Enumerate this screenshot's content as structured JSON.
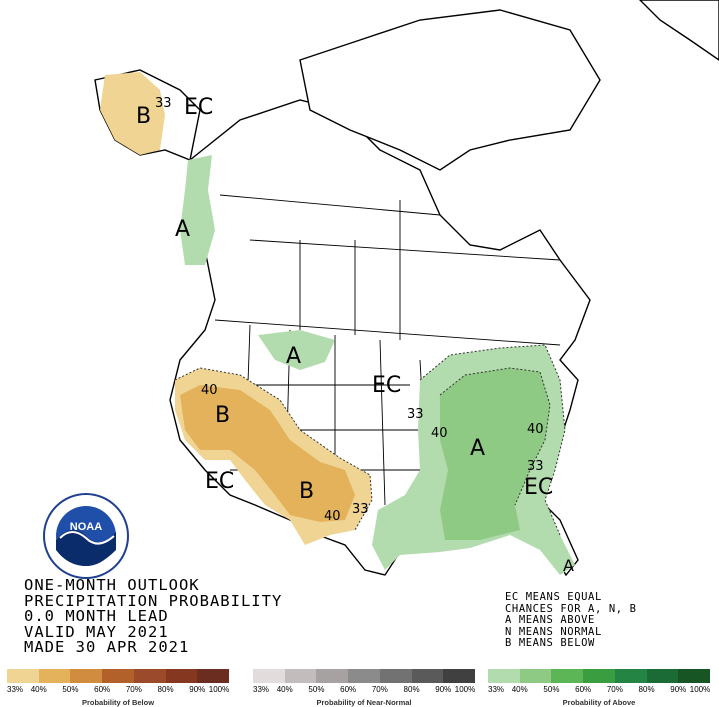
{
  "map": {
    "labels": {
      "alaska_below": "B",
      "alaska_33": "33",
      "alaska_ec": "EC",
      "pacnw_above": "A",
      "north_above": "A",
      "central_ec": "EC",
      "west_40": "40",
      "west_below": "B",
      "sw_ec": "EC",
      "south_below": "B",
      "south_40": "40",
      "south_33": "33",
      "east_33": "33",
      "east_40a": "40",
      "east_above": "A",
      "east_40b": "40",
      "east_33b": "33",
      "se_ec": "EC",
      "florida_above": "A"
    }
  },
  "title": {
    "line1": "ONE-MONTH OUTLOOK",
    "line2": "PRECIPITATION PROBABILITY",
    "line3": "0.0 MONTH LEAD",
    "line4": "VALID MAY 2021",
    "line5": "MADE 30 APR 2021"
  },
  "key": {
    "line1": "EC MEANS EQUAL",
    "line2": "CHANCES FOR A, N, B",
    "line3": "A MEANS ABOVE",
    "line4": "N MEANS NORMAL",
    "line5": "B MEANS BELOW"
  },
  "logo": {
    "text": "NOAA",
    "ring_text": "NATIONAL OCEANIC AND ATMOSPHERIC ADMINISTRATION · U.S. DEPARTMENT OF COMMERCE"
  },
  "legend": {
    "below": {
      "caption": "Probability of Below",
      "ticks": [
        "33%",
        "40%",
        "50%",
        "60%",
        "70%",
        "80%",
        "90%",
        "100%"
      ],
      "colors": [
        "#f0d493",
        "#e3b25b",
        "#d18c40",
        "#b3612b",
        "#9b4a2b",
        "#85371f",
        "#6b2d1f"
      ]
    },
    "normal": {
      "caption": "Probability of Near-Normal",
      "ticks": [
        "33%",
        "40%",
        "50%",
        "60%",
        "70%",
        "80%",
        "90%",
        "100%"
      ],
      "colors": [
        "#e3dcdc",
        "#c2bcbc",
        "#a6a2a2",
        "#8c8b8b",
        "#727272",
        "#5a5a5a",
        "#404040"
      ]
    },
    "above": {
      "caption": "Probability of Above",
      "ticks": [
        "33%",
        "40%",
        "50%",
        "60%",
        "70%",
        "80%",
        "90%",
        "100%"
      ],
      "colors": [
        "#b3dcae",
        "#8fca84",
        "#5db655",
        "#3a9d3f",
        "#238443",
        "#1a6b35",
        "#175624"
      ]
    }
  }
}
